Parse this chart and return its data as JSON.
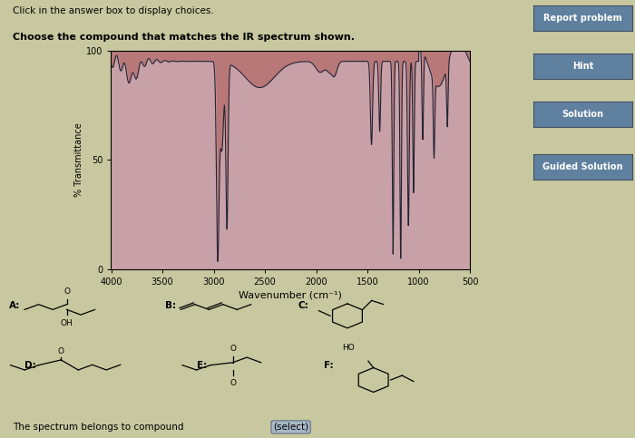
{
  "title_line1": "Click in the answer box to display choices.",
  "title_line2": "Choose the compound that matches the IR spectrum shown.",
  "ylabel": "% Transmittance",
  "xlabel": "Wavenumber (cm⁻¹)",
  "xlim_left": 4000,
  "xlim_right": 500,
  "ylim": [
    0,
    100
  ],
  "yticks": [
    0,
    50,
    100
  ],
  "xticks": [
    4000,
    3500,
    3000,
    2500,
    2000,
    1500,
    1000,
    500
  ],
  "plot_bg_top": "#b87070",
  "plot_bg_bot": "#c8a0a8",
  "line_color": "#222233",
  "bg_color": "#c8c8a0",
  "footer_text": "The spectrum belongs to compound",
  "button_select": "(select)",
  "side_buttons": [
    "Report problem",
    "Hint",
    "Solution",
    "Guided Solution"
  ],
  "btn_color": "#6080a0",
  "compound_labels": [
    "A:",
    "B:",
    "C:",
    "D:",
    "E:",
    "F:"
  ]
}
